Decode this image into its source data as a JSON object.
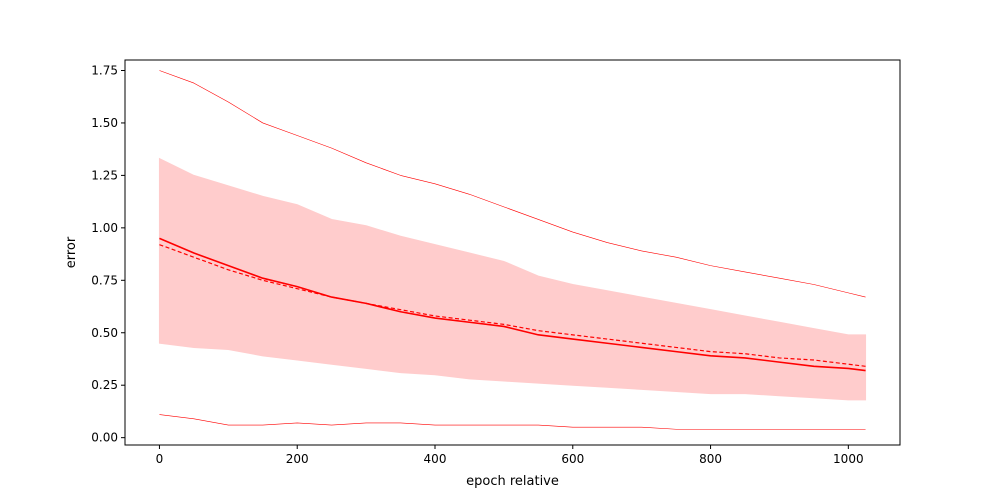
{
  "chart_data": {
    "type": "line",
    "title": "",
    "xlabel": "epoch relative",
    "ylabel": "error",
    "xlim": [
      -50,
      1075
    ],
    "ylim": [
      -0.035,
      1.8
    ],
    "grid": false,
    "color": "#ff0000",
    "band_color": "#ffcccc",
    "x_ticks": [
      0,
      200,
      400,
      600,
      800,
      1000
    ],
    "x_tick_labels": [
      "0",
      "200",
      "400",
      "600",
      "800",
      "1000"
    ],
    "y_ticks": [
      0.0,
      0.25,
      0.5,
      0.75,
      1.0,
      1.25,
      1.5,
      1.75
    ],
    "y_tick_labels": [
      "0.00",
      "0.25",
      "0.50",
      "0.75",
      "1.00",
      "1.25",
      "1.50",
      "1.75"
    ],
    "x": [
      0,
      50,
      100,
      150,
      200,
      250,
      300,
      350,
      400,
      450,
      500,
      550,
      600,
      650,
      700,
      750,
      800,
      850,
      900,
      950,
      1000,
      1025
    ],
    "series": [
      {
        "role": "mean",
        "style": "solid",
        "values": [
          0.95,
          0.88,
          0.82,
          0.76,
          0.72,
          0.67,
          0.64,
          0.6,
          0.57,
          0.55,
          0.53,
          0.49,
          0.47,
          0.45,
          0.43,
          0.41,
          0.39,
          0.38,
          0.36,
          0.34,
          0.33,
          0.32
        ]
      },
      {
        "role": "trend",
        "style": "dashed",
        "values": [
          0.92,
          0.86,
          0.8,
          0.75,
          0.71,
          0.67,
          0.64,
          0.61,
          0.58,
          0.56,
          0.54,
          0.51,
          0.49,
          0.47,
          0.45,
          0.43,
          0.41,
          0.4,
          0.38,
          0.37,
          0.35,
          0.34
        ]
      },
      {
        "role": "band_upper",
        "style": "fill",
        "values": [
          1.33,
          1.25,
          1.2,
          1.15,
          1.11,
          1.04,
          1.01,
          0.96,
          0.92,
          0.88,
          0.84,
          0.77,
          0.73,
          0.7,
          0.67,
          0.64,
          0.61,
          0.58,
          0.55,
          0.52,
          0.49,
          0.49
        ]
      },
      {
        "role": "band_lower",
        "style": "fill",
        "values": [
          0.45,
          0.43,
          0.42,
          0.39,
          0.37,
          0.35,
          0.33,
          0.31,
          0.3,
          0.28,
          0.27,
          0.26,
          0.25,
          0.24,
          0.23,
          0.22,
          0.21,
          0.21,
          0.2,
          0.19,
          0.18,
          0.18
        ]
      },
      {
        "role": "max",
        "style": "thin",
        "values": [
          1.75,
          1.69,
          1.6,
          1.5,
          1.44,
          1.38,
          1.31,
          1.25,
          1.21,
          1.16,
          1.1,
          1.04,
          0.98,
          0.93,
          0.89,
          0.86,
          0.82,
          0.79,
          0.76,
          0.73,
          0.69,
          0.67
        ]
      },
      {
        "role": "min",
        "style": "thin",
        "values": [
          0.11,
          0.09,
          0.06,
          0.06,
          0.07,
          0.06,
          0.07,
          0.07,
          0.06,
          0.06,
          0.06,
          0.06,
          0.05,
          0.05,
          0.05,
          0.04,
          0.04,
          0.04,
          0.04,
          0.04,
          0.04,
          0.04
        ]
      }
    ]
  }
}
